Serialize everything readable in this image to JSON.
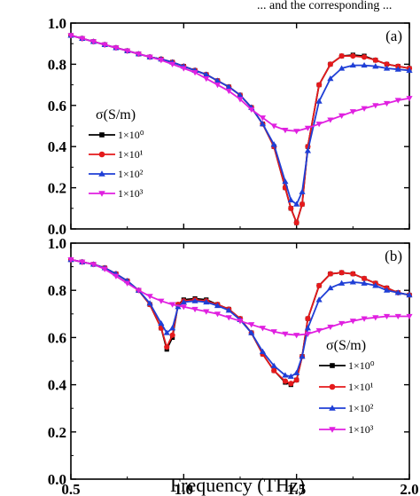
{
  "top_fragment": "... and the corresponding ...",
  "xlabel": "Frequency (THz)",
  "chart_data": [
    {
      "type": "line",
      "panel_label": "(a)",
      "xlim": [
        0.5,
        2.0
      ],
      "ylim": [
        0.0,
        1.0
      ],
      "xticks": [
        "0.5",
        "1.0",
        "1.5",
        "2.0"
      ],
      "yticks": [
        "0.0",
        "0.2",
        "0.4",
        "0.6",
        "0.8",
        "1.0"
      ],
      "legend": {
        "title": "σ(S/m)",
        "placement": "left"
      },
      "series": [
        {
          "name": "1×10⁰",
          "color": "#000000",
          "marker": "square",
          "x": [
            0.5,
            0.55,
            0.6,
            0.65,
            0.7,
            0.75,
            0.8,
            0.85,
            0.9,
            0.95,
            1.0,
            1.05,
            1.1,
            1.15,
            1.2,
            1.25,
            1.3,
            1.35,
            1.4,
            1.45,
            1.475,
            1.5,
            1.525,
            1.55,
            1.6,
            1.65,
            1.7,
            1.75,
            1.8,
            1.85,
            1.9,
            1.95,
            2.0
          ],
          "y": [
            0.94,
            0.925,
            0.91,
            0.895,
            0.88,
            0.865,
            0.85,
            0.835,
            0.825,
            0.81,
            0.79,
            0.77,
            0.75,
            0.72,
            0.69,
            0.65,
            0.59,
            0.51,
            0.4,
            0.2,
            0.1,
            0.03,
            0.12,
            0.4,
            0.7,
            0.8,
            0.84,
            0.845,
            0.84,
            0.82,
            0.8,
            0.79,
            0.78
          ]
        },
        {
          "name": "1×10¹",
          "color": "#e41a1c",
          "marker": "circle",
          "x": [
            0.5,
            0.55,
            0.6,
            0.65,
            0.7,
            0.75,
            0.8,
            0.85,
            0.9,
            0.95,
            1.0,
            1.05,
            1.1,
            1.15,
            1.2,
            1.25,
            1.3,
            1.35,
            1.4,
            1.45,
            1.475,
            1.5,
            1.525,
            1.55,
            1.6,
            1.65,
            1.7,
            1.75,
            1.8,
            1.85,
            1.9,
            1.95,
            2.0
          ],
          "y": [
            0.94,
            0.925,
            0.91,
            0.895,
            0.88,
            0.865,
            0.85,
            0.835,
            0.825,
            0.81,
            0.79,
            0.77,
            0.75,
            0.72,
            0.69,
            0.65,
            0.59,
            0.51,
            0.4,
            0.2,
            0.1,
            0.03,
            0.12,
            0.4,
            0.7,
            0.8,
            0.84,
            0.84,
            0.835,
            0.82,
            0.8,
            0.79,
            0.78
          ]
        },
        {
          "name": "1×10²",
          "color": "#1f3fd6",
          "marker": "triangle",
          "x": [
            0.5,
            0.55,
            0.6,
            0.65,
            0.7,
            0.75,
            0.8,
            0.85,
            0.9,
            0.95,
            1.0,
            1.05,
            1.1,
            1.15,
            1.2,
            1.25,
            1.3,
            1.35,
            1.4,
            1.45,
            1.475,
            1.5,
            1.525,
            1.55,
            1.6,
            1.65,
            1.7,
            1.75,
            1.8,
            1.85,
            1.9,
            1.95,
            2.0
          ],
          "y": [
            0.94,
            0.925,
            0.91,
            0.895,
            0.88,
            0.865,
            0.85,
            0.835,
            0.825,
            0.81,
            0.79,
            0.77,
            0.75,
            0.72,
            0.69,
            0.65,
            0.59,
            0.51,
            0.41,
            0.23,
            0.14,
            0.12,
            0.18,
            0.38,
            0.62,
            0.73,
            0.78,
            0.795,
            0.795,
            0.79,
            0.78,
            0.775,
            0.77
          ]
        },
        {
          "name": "1×10³",
          "color": "#e020e0",
          "marker": "triangle-down",
          "x": [
            0.5,
            0.55,
            0.6,
            0.65,
            0.7,
            0.75,
            0.8,
            0.85,
            0.9,
            0.95,
            1.0,
            1.05,
            1.1,
            1.15,
            1.2,
            1.25,
            1.3,
            1.35,
            1.4,
            1.45,
            1.5,
            1.55,
            1.6,
            1.65,
            1.7,
            1.75,
            1.8,
            1.85,
            1.9,
            1.95,
            2.0
          ],
          "y": [
            0.94,
            0.925,
            0.91,
            0.895,
            0.88,
            0.865,
            0.85,
            0.835,
            0.82,
            0.8,
            0.78,
            0.76,
            0.73,
            0.7,
            0.67,
            0.63,
            0.58,
            0.54,
            0.5,
            0.48,
            0.475,
            0.49,
            0.51,
            0.53,
            0.55,
            0.57,
            0.585,
            0.6,
            0.61,
            0.625,
            0.635
          ]
        }
      ]
    },
    {
      "type": "line",
      "panel_label": "(b)",
      "xlim": [
        0.5,
        2.0
      ],
      "ylim": [
        0.0,
        1.0
      ],
      "xticks": [
        "0.5",
        "1.0",
        "1.5",
        "2.0"
      ],
      "yticks": [
        "0.0",
        "0.2",
        "0.4",
        "0.6",
        "0.8",
        "1.0"
      ],
      "legend": {
        "title": "σ(S/m)",
        "placement": "bottom-right"
      },
      "series": [
        {
          "name": "1×10⁰",
          "color": "#000000",
          "marker": "square",
          "x": [
            0.5,
            0.55,
            0.6,
            0.65,
            0.7,
            0.75,
            0.8,
            0.85,
            0.9,
            0.925,
            0.95,
            0.975,
            1.0,
            1.05,
            1.1,
            1.15,
            1.2,
            1.25,
            1.3,
            1.35,
            1.4,
            1.45,
            1.475,
            1.5,
            1.525,
            1.55,
            1.6,
            1.65,
            1.7,
            1.75,
            1.8,
            1.85,
            1.9,
            1.95,
            2.0
          ],
          "y": [
            0.93,
            0.92,
            0.91,
            0.895,
            0.87,
            0.84,
            0.8,
            0.74,
            0.64,
            0.55,
            0.6,
            0.74,
            0.76,
            0.765,
            0.76,
            0.74,
            0.72,
            0.68,
            0.62,
            0.53,
            0.46,
            0.41,
            0.4,
            0.42,
            0.52,
            0.68,
            0.82,
            0.87,
            0.875,
            0.87,
            0.85,
            0.83,
            0.81,
            0.79,
            0.78
          ]
        },
        {
          "name": "1×10¹",
          "color": "#e41a1c",
          "marker": "circle",
          "x": [
            0.5,
            0.55,
            0.6,
            0.65,
            0.7,
            0.75,
            0.8,
            0.85,
            0.9,
            0.925,
            0.95,
            0.975,
            1.0,
            1.05,
            1.1,
            1.15,
            1.2,
            1.25,
            1.3,
            1.35,
            1.4,
            1.45,
            1.475,
            1.5,
            1.525,
            1.55,
            1.6,
            1.65,
            1.7,
            1.75,
            1.8,
            1.85,
            1.9,
            1.95,
            2.0
          ],
          "y": [
            0.93,
            0.92,
            0.91,
            0.895,
            0.87,
            0.84,
            0.8,
            0.74,
            0.64,
            0.56,
            0.61,
            0.74,
            0.755,
            0.76,
            0.755,
            0.74,
            0.72,
            0.68,
            0.62,
            0.53,
            0.46,
            0.415,
            0.405,
            0.42,
            0.52,
            0.68,
            0.82,
            0.87,
            0.875,
            0.87,
            0.85,
            0.83,
            0.81,
            0.79,
            0.78
          ]
        },
        {
          "name": "1×10²",
          "color": "#1f3fd6",
          "marker": "triangle",
          "x": [
            0.5,
            0.55,
            0.6,
            0.65,
            0.7,
            0.75,
            0.8,
            0.85,
            0.9,
            0.925,
            0.95,
            0.975,
            1.0,
            1.05,
            1.1,
            1.15,
            1.2,
            1.25,
            1.3,
            1.35,
            1.4,
            1.45,
            1.475,
            1.5,
            1.525,
            1.55,
            1.6,
            1.65,
            1.7,
            1.75,
            1.8,
            1.85,
            1.9,
            1.95,
            2.0
          ],
          "y": [
            0.93,
            0.92,
            0.91,
            0.895,
            0.87,
            0.84,
            0.8,
            0.745,
            0.66,
            0.62,
            0.64,
            0.73,
            0.75,
            0.755,
            0.75,
            0.735,
            0.715,
            0.675,
            0.62,
            0.54,
            0.48,
            0.44,
            0.435,
            0.45,
            0.52,
            0.64,
            0.76,
            0.81,
            0.83,
            0.835,
            0.83,
            0.82,
            0.8,
            0.79,
            0.78
          ]
        },
        {
          "name": "1×10³",
          "color": "#e020e0",
          "marker": "triangle-down",
          "x": [
            0.5,
            0.55,
            0.6,
            0.65,
            0.7,
            0.75,
            0.8,
            0.85,
            0.9,
            0.95,
            1.0,
            1.05,
            1.1,
            1.15,
            1.2,
            1.25,
            1.3,
            1.35,
            1.4,
            1.45,
            1.5,
            1.55,
            1.6,
            1.65,
            1.7,
            1.75,
            1.8,
            1.85,
            1.9,
            1.95,
            2.0
          ],
          "y": [
            0.93,
            0.92,
            0.91,
            0.89,
            0.86,
            0.83,
            0.8,
            0.775,
            0.755,
            0.74,
            0.73,
            0.72,
            0.71,
            0.7,
            0.685,
            0.67,
            0.655,
            0.64,
            0.625,
            0.615,
            0.61,
            0.615,
            0.63,
            0.645,
            0.66,
            0.67,
            0.68,
            0.685,
            0.69,
            0.69,
            0.69
          ]
        }
      ]
    }
  ]
}
